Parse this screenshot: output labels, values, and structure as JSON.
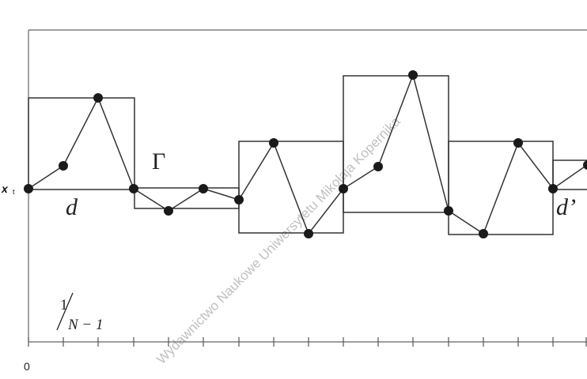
{
  "labels": {
    "x_t": "x",
    "x_t_sub": "t",
    "d": "d",
    "d_prime": "d’",
    "gamma": "Γ",
    "fraction_numerator": "1",
    "fraction_denominator": "N − 1",
    "origin": "0"
  },
  "watermark": "Wydawnictwo Naukowe Uniwersytetu Mikołaja Kopernika",
  "colors": {
    "line": "#333333",
    "marker": "#1a1a1a",
    "axis": "#555555",
    "watermark": "#b8b8b8"
  }
}
